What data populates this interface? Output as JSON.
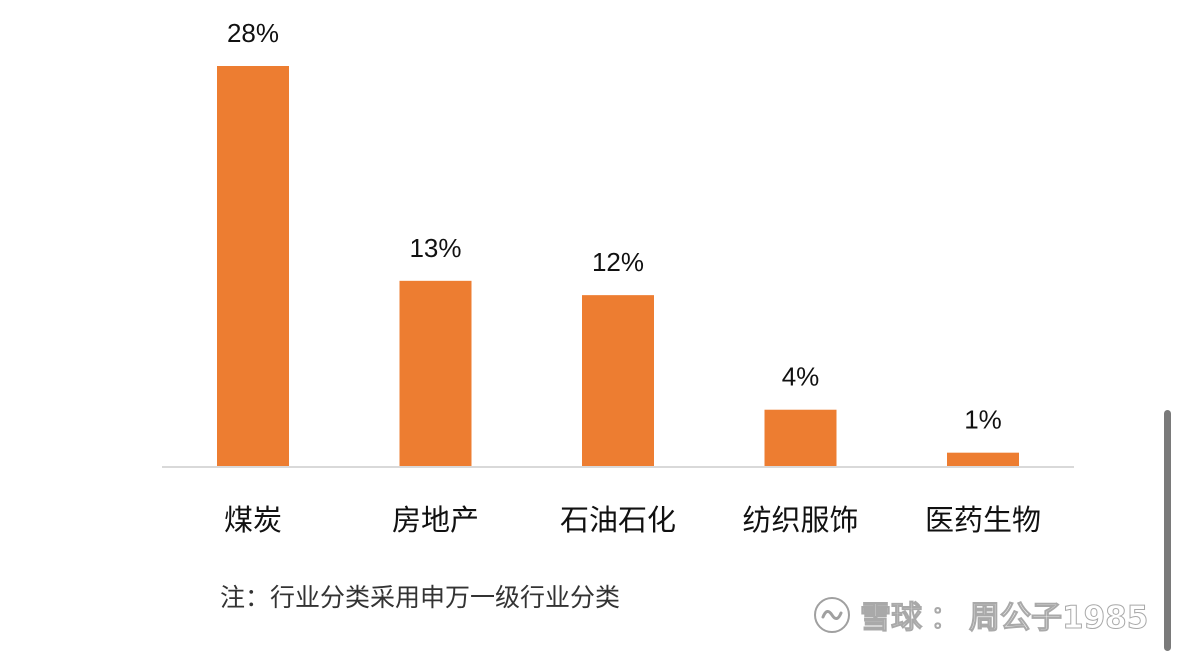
{
  "chart_data": {
    "type": "bar",
    "categories": [
      "煤炭",
      "房地产",
      "石油石化",
      "纺织服饰",
      "医药生物"
    ],
    "values": [
      28,
      13,
      12,
      4,
      1
    ],
    "data_labels": [
      "28%",
      "13%",
      "12%",
      "4%",
      "1%"
    ],
    "title": "",
    "xlabel": "",
    "ylabel": "",
    "ylim": [
      0,
      28
    ],
    "grid": false,
    "legend": "none",
    "bar_color": "#ED7D31",
    "axis_color": "#D9D9D9"
  },
  "note": "注：行业分类采用申万一级行业分类",
  "watermark": {
    "site": "雪球",
    "separator": "：",
    "user": "周公子1985",
    "icon": "xueqiu-logo-icon"
  }
}
